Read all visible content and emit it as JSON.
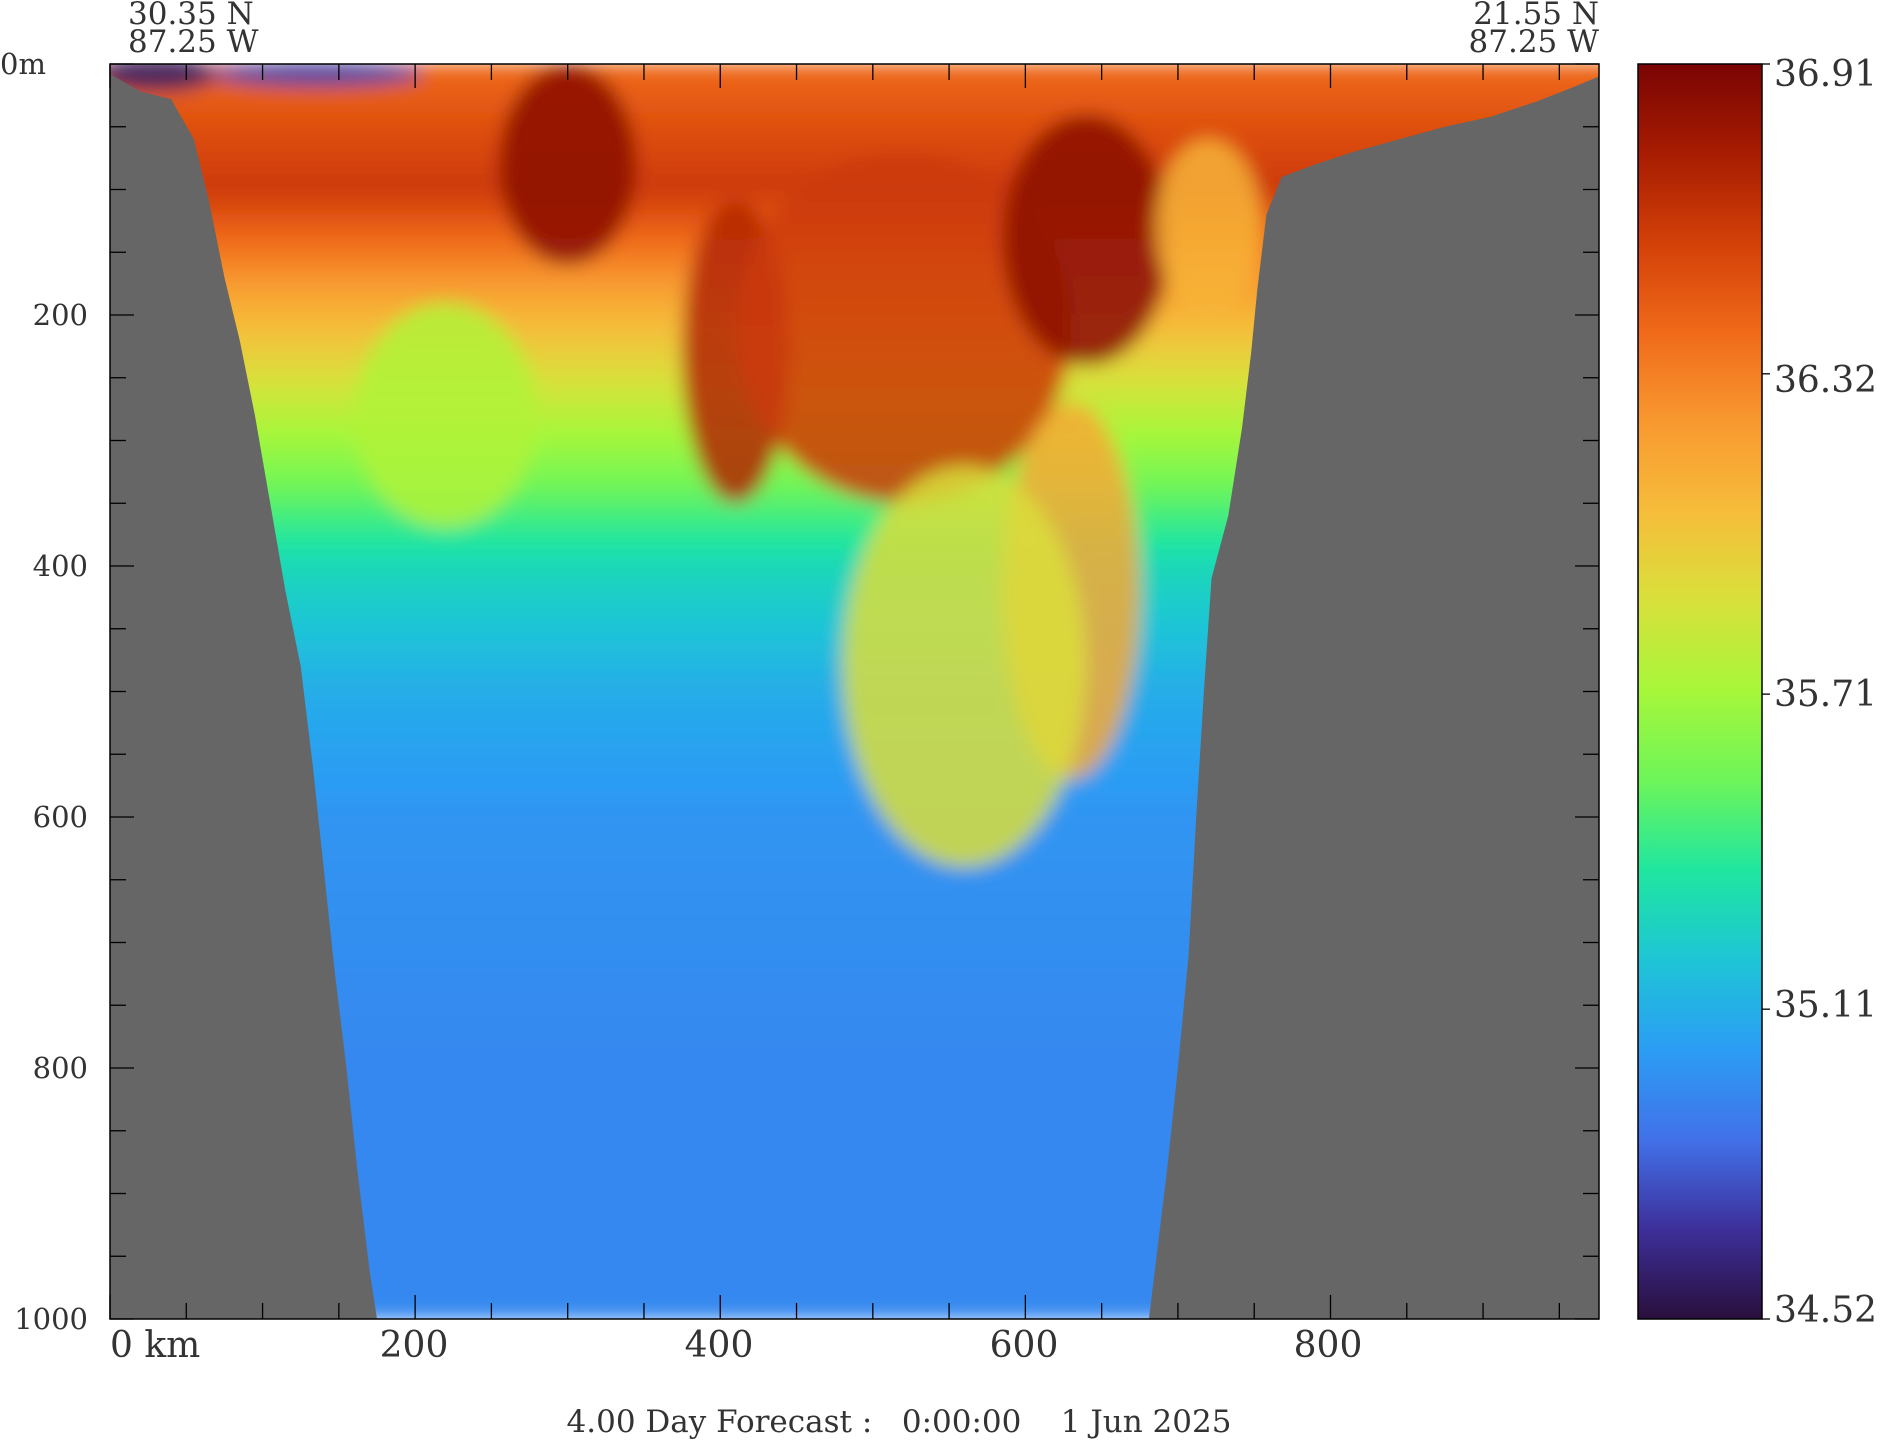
{
  "chart_data": {
    "type": "heatmap",
    "title": "",
    "xlabel": "",
    "ylabel": "",
    "x_unit": "km",
    "y_unit": "m",
    "xlim": [
      0,
      976
    ],
    "ylim": [
      0,
      1000
    ],
    "x_ticks_major": [
      0,
      200,
      400,
      600,
      800
    ],
    "x_tick_labels": [
      "0 km",
      "200",
      "400",
      "600",
      "800"
    ],
    "x_ticks_minor": [
      50,
      100,
      150,
      250,
      300,
      350,
      450,
      500,
      550,
      650,
      700,
      750,
      850,
      900,
      950
    ],
    "y_ticks_major": [
      0,
      200,
      400,
      600,
      800,
      1000
    ],
    "y_tick_labels": [
      "0m",
      "200",
      "400",
      "600",
      "800",
      "1000"
    ],
    "y_ticks_minor": [
      50,
      100,
      150,
      250,
      300,
      350,
      450,
      500,
      550,
      650,
      700,
      750,
      850,
      900,
      950
    ],
    "left_endpoint": {
      "lat": "30.35 N",
      "lon": "87.25 W"
    },
    "right_endpoint": {
      "lat": "21.55 N",
      "lon": "87.25 W"
    },
    "footer": "4.00 Day Forecast :   0:00:00    1 Jun 2025",
    "colorbar": {
      "min": 34.52,
      "max": 36.91,
      "tick_values": [
        36.91,
        36.32,
        35.71,
        35.11,
        34.52
      ],
      "tick_labels": [
        "36.91",
        "36.32",
        "35.71",
        "35.11",
        "34.52"
      ],
      "colors": [
        "#2a0f3b",
        "#3d2f9a",
        "#4271e9",
        "#2b9df4",
        "#1ec5d6",
        "#1fe6a0",
        "#6df55a",
        "#a6f73a",
        "#d8e13b",
        "#f6bd3a",
        "#f89930",
        "#f06a1a",
        "#d34008",
        "#a71c02",
        "#7a0403"
      ]
    },
    "land_color": "#666666",
    "bathymetry_left": [
      [
        0,
        8
      ],
      [
        20,
        22
      ],
      [
        40,
        28
      ],
      [
        55,
        60
      ],
      [
        65,
        110
      ],
      [
        75,
        170
      ],
      [
        85,
        220
      ],
      [
        95,
        280
      ],
      [
        105,
        350
      ],
      [
        115,
        420
      ],
      [
        125,
        480
      ],
      [
        133,
        560
      ],
      [
        140,
        640
      ],
      [
        147,
        720
      ],
      [
        155,
        800
      ],
      [
        162,
        880
      ],
      [
        170,
        960
      ],
      [
        175,
        1000
      ]
    ],
    "bathymetry_right": [
      [
        681,
        1000
      ],
      [
        685,
        960
      ],
      [
        693,
        880
      ],
      [
        700,
        800
      ],
      [
        707,
        710
      ],
      [
        712,
        600
      ],
      [
        717,
        500
      ],
      [
        722,
        410
      ],
      [
        733,
        360
      ],
      [
        742,
        290
      ],
      [
        748,
        230
      ],
      [
        752,
        180
      ],
      [
        758,
        120
      ],
      [
        768,
        90
      ],
      [
        790,
        80
      ],
      [
        815,
        70
      ],
      [
        845,
        60
      ],
      [
        875,
        50
      ],
      [
        905,
        42
      ],
      [
        935,
        30
      ],
      [
        960,
        18
      ],
      [
        976,
        10
      ]
    ],
    "salinity_profile_by_depth": [
      {
        "depth": 0,
        "value": 36.4
      },
      {
        "depth": 100,
        "value": 36.6
      },
      {
        "depth": 200,
        "value": 36.1
      },
      {
        "depth": 300,
        "value": 35.7
      },
      {
        "depth": 400,
        "value": 35.3
      },
      {
        "depth": 500,
        "value": 35.1
      },
      {
        "depth": 600,
        "value": 35.0
      },
      {
        "depth": 800,
        "value": 34.95
      },
      {
        "depth": 1000,
        "value": 34.95
      }
    ],
    "anomalies": [
      {
        "x": 30,
        "depth": 8,
        "rx": 40,
        "rz": 14,
        "value": 34.6
      },
      {
        "x": 135,
        "depth": 8,
        "rx": 70,
        "rz": 10,
        "value": 34.75
      },
      {
        "x": 300,
        "depth": 80,
        "rx": 45,
        "rz": 80,
        "value": 36.85
      },
      {
        "x": 410,
        "depth": 230,
        "rx": 35,
        "rz": 120,
        "value": 36.7
      },
      {
        "x": 520,
        "depth": 210,
        "rx": 110,
        "rz": 140,
        "value": 36.6
      },
      {
        "x": 640,
        "depth": 140,
        "rx": 55,
        "rz": 100,
        "value": 36.85
      },
      {
        "x": 630,
        "depth": 420,
        "rx": 45,
        "rz": 150,
        "value": 36.15
      },
      {
        "x": 560,
        "depth": 480,
        "rx": 80,
        "rz": 160,
        "value": 35.9
      },
      {
        "x": 220,
        "depth": 280,
        "rx": 60,
        "rz": 90,
        "value": 35.75
      },
      {
        "x": 720,
        "depth": 130,
        "rx": 35,
        "rz": 70,
        "value": 36.1
      }
    ]
  }
}
